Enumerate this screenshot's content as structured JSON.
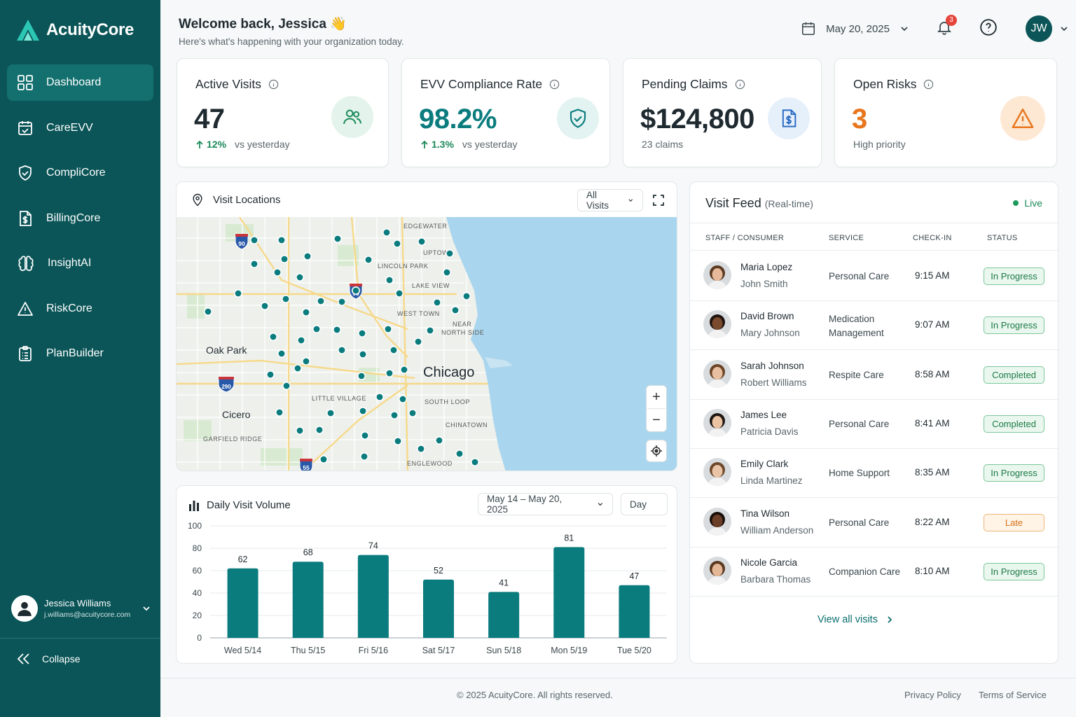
{
  "app": {
    "name": "AcuityCore"
  },
  "sidebar": {
    "items": [
      {
        "label": "Dashboard",
        "icon": "grid-icon",
        "active": true
      },
      {
        "label": "CareEVV",
        "icon": "calendar-check-icon"
      },
      {
        "label": "CompliCore",
        "icon": "shield-check-icon"
      },
      {
        "label": "BillingCore",
        "icon": "dollar-file-icon"
      },
      {
        "label": "InsightAI",
        "icon": "brain-icon"
      },
      {
        "label": "RiskCore",
        "icon": "warning-icon"
      },
      {
        "label": "PlanBuilder",
        "icon": "clipboard-list-icon"
      }
    ],
    "user": {
      "name": "Jessica Williams",
      "email": "j.williams@acuitycore.com"
    },
    "collapse_label": "Collapse"
  },
  "header": {
    "welcome": "Welcome back, Jessica 👋",
    "subtitle": "Here's what's happening with your organization today.",
    "date": "May 20, 2025",
    "notifications": "3",
    "avatar_initials": "JW"
  },
  "kpis": {
    "active_visits": {
      "title": "Active Visits",
      "value": "47",
      "change": "12%",
      "sub": "vs yesterday"
    },
    "evv": {
      "title": "EVV Compliance Rate",
      "value": "98.2%",
      "change": "1.3%",
      "sub": "vs yesterday"
    },
    "claims": {
      "title": "Pending Claims",
      "value": "$124,800",
      "sub": "23 claims"
    },
    "risks": {
      "title": "Open Risks",
      "value": "3",
      "sub": "High priority"
    }
  },
  "map": {
    "title": "Visit Locations",
    "filter": "All Visits",
    "labels": {
      "city": "Chicago",
      "oak_park": "Oak Park",
      "cicero": "Cicero",
      "edgewater": "EDGEWATER",
      "uptown": "UPTOWN",
      "lincoln_park": "LINCOLN PARK",
      "lake_view": "LAKE VIEW",
      "west_town": "WEST TOWN",
      "near_north": "NEAR",
      "near_north_2": "NORTH SIDE",
      "little_village": "LITTLE VILLAGE",
      "south_loop": "SOUTH LOOP",
      "chinatown": "CHINATOWN",
      "garfield": "GARFIELD RIDGE",
      "englewood": "ENGLEWOOD",
      "i90a": "90",
      "i90b": "90",
      "i290": "290",
      "i55": "55"
    }
  },
  "chart": {
    "title": "Daily Visit Volume",
    "range": "May 14 – May 20, 2025",
    "granularity": "Day"
  },
  "chart_data": {
    "type": "bar",
    "title": "Daily Visit Volume",
    "categories": [
      "Wed 5/14",
      "Thu 5/15",
      "Fri 5/16",
      "Sat 5/17",
      "Sun 5/18",
      "Mon 5/19",
      "Tue 5/20"
    ],
    "values": [
      62,
      68,
      74,
      52,
      41,
      81,
      47
    ],
    "yticks": [
      "100",
      "80",
      "60",
      "40",
      "20",
      "0"
    ],
    "ylim": [
      0,
      100
    ],
    "color": "#0b7c7e",
    "grid": true
  },
  "feed": {
    "title": "Visit Feed",
    "subtitle": "(Real-time)",
    "live_label": "Live",
    "columns": [
      "STAFF / CONSUMER",
      "SERVICE",
      "CHECK-IN",
      "STATUS"
    ],
    "rows": [
      {
        "staff": "Maria Lopez",
        "consumer": "John Smith",
        "service": "Personal Care",
        "service2": "",
        "checkin": "9:15 AM",
        "status": "In Progress",
        "kind": "progress",
        "skin": "#e6b99a",
        "hair": "#5a3a22"
      },
      {
        "staff": "David Brown",
        "consumer": "Mary Johnson",
        "service": "Medication",
        "service2": "Management",
        "checkin": "9:07 AM",
        "status": "In Progress",
        "kind": "progress",
        "skin": "#7a4a2e",
        "hair": "#1f1410"
      },
      {
        "staff": "Sarah Johnson",
        "consumer": "Robert Williams",
        "service": "Respite Care",
        "service2": "",
        "checkin": "8:58 AM",
        "status": "Completed",
        "kind": "progress",
        "skin": "#e8bfa0",
        "hair": "#6b4426"
      },
      {
        "staff": "James Lee",
        "consumer": "Patricia Davis",
        "service": "Personal Care",
        "service2": "",
        "checkin": "8:41 AM",
        "status": "Completed",
        "kind": "progress",
        "skin": "#e9c3a2",
        "hair": "#1e1612"
      },
      {
        "staff": "Emily Clark",
        "consumer": "Linda Martinez",
        "service": "Home Support",
        "service2": "",
        "checkin": "8:35 AM",
        "status": "In Progress",
        "kind": "progress",
        "skin": "#eac4a6",
        "hair": "#6e4a2c"
      },
      {
        "staff": "Tina Wilson",
        "consumer": "William Anderson",
        "service": "Personal Care",
        "service2": "",
        "checkin": "8:22 AM",
        "status": "Late",
        "kind": "late",
        "skin": "#6b3f27",
        "hair": "#1a100b"
      },
      {
        "staff": "Nicole Garcia",
        "consumer": "Barbara Thomas",
        "service": "Companion Care",
        "service2": "",
        "checkin": "8:10 AM",
        "status": "In Progress",
        "kind": "progress",
        "skin": "#e4b797",
        "hair": "#5c3a22"
      }
    ],
    "view_all": "View all visits"
  },
  "footer": {
    "copyright": "© 2025 AcuityCore. All rights reserved.",
    "privacy": "Privacy Policy",
    "terms": "Terms of Service"
  }
}
